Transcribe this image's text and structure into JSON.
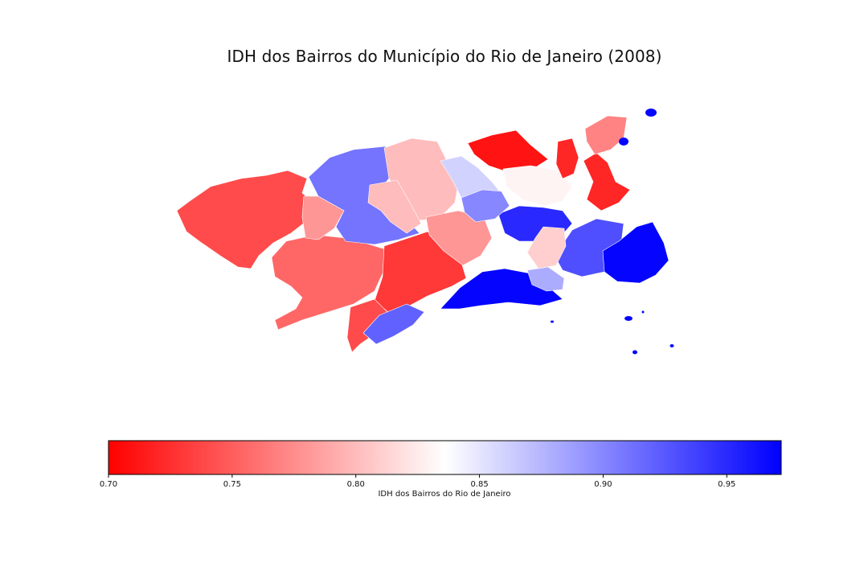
{
  "title": "IDH dos Bairros do Município do Rio de Janeiro (2008)",
  "colorbar": {
    "label": "IDH dos Bairros do Rio de Janeiro",
    "min": 0.7,
    "max": 0.972,
    "ticks": [
      "0.70",
      "0.75",
      "0.80",
      "0.85",
      "0.90",
      "0.95"
    ],
    "colors": {
      "low": "#ff0000",
      "mid": "#ffffff",
      "high": "#0000ff"
    },
    "midpoint": 0.836
  },
  "chart_data": {
    "type": "heatmap",
    "title": "IDH dos Bairros do Município do Rio de Janeiro (2008)",
    "colormap": "bwr_r",
    "range": [
      0.7,
      0.972
    ],
    "regions": [
      {
        "value": 0.74
      },
      {
        "value": 0.755
      },
      {
        "value": 0.73
      },
      {
        "value": 0.91
      },
      {
        "value": 0.8
      },
      {
        "value": 0.78
      },
      {
        "value": 0.74
      },
      {
        "value": 0.8
      },
      {
        "value": 0.86
      },
      {
        "value": 0.97
      },
      {
        "value": 0.92
      },
      {
        "value": 0.93
      },
      {
        "value": 0.78
      },
      {
        "value": 0.71
      },
      {
        "value": 0.83
      },
      {
        "value": 0.72
      },
      {
        "value": 0.77
      },
      {
        "value": 0.97
      },
      {
        "value": 0.72
      },
      {
        "value": 0.95
      },
      {
        "value": 0.88
      },
      {
        "value": 0.81
      },
      {
        "value": 0.9
      }
    ]
  }
}
